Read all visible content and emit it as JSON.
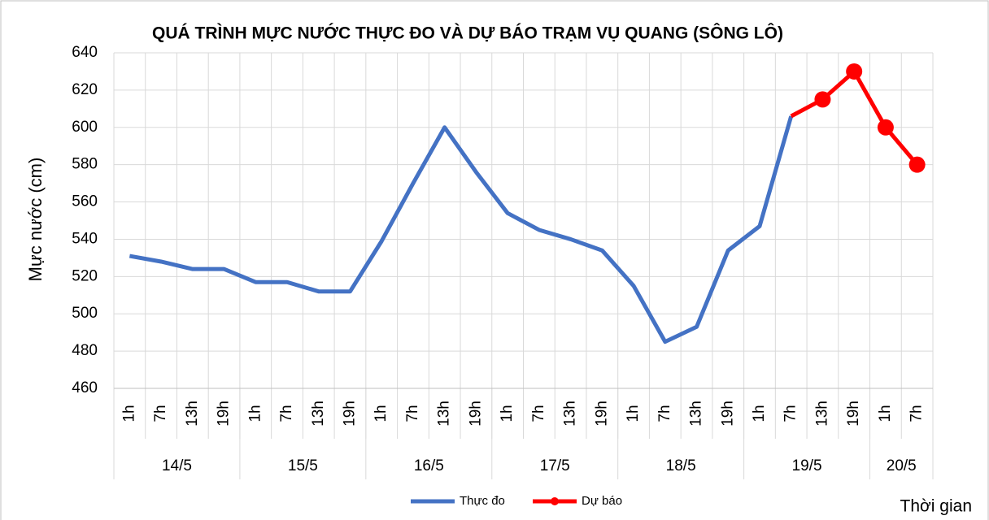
{
  "chart_data": {
    "type": "line",
    "title": "QUÁ TRÌNH MỰC NƯỚC THỰC ĐO VÀ DỰ BÁO TRẠM VỤ QUANG (SÔNG LÔ)",
    "y_label": "Mực nước (cm)",
    "x_label": "Thời gian",
    "categories": [
      "1h",
      "7h",
      "13h",
      "19h",
      "1h",
      "7h",
      "13h",
      "19h",
      "1h",
      "7h",
      "13h",
      "19h",
      "1h",
      "7h",
      "13h",
      "19h",
      "1h",
      "7h",
      "13h",
      "19h",
      "1h",
      "7h",
      "13h",
      "19h",
      "1h",
      "7h"
    ],
    "groups": [
      {
        "label": "14/5",
        "count": 4
      },
      {
        "label": "15/5",
        "count": 4
      },
      {
        "label": "16/5",
        "count": 4
      },
      {
        "label": "17/5",
        "count": 4
      },
      {
        "label": "18/5",
        "count": 4
      },
      {
        "label": "19/5",
        "count": 4
      },
      {
        "label": "20/5",
        "count": 2
      }
    ],
    "series": [
      {
        "name": "Thực đo",
        "color": "#4472c4",
        "marker": false,
        "values": [
          531,
          528,
          524,
          524,
          517,
          517,
          512,
          512,
          539,
          570,
          600,
          576,
          554,
          545,
          540,
          534,
          515,
          485,
          493,
          534,
          547,
          606,
          null,
          null,
          null,
          null
        ]
      },
      {
        "name": "Dự báo",
        "color": "#ff0000",
        "marker": true,
        "values": [
          null,
          null,
          null,
          null,
          null,
          null,
          null,
          null,
          null,
          null,
          null,
          null,
          null,
          null,
          null,
          null,
          null,
          null,
          null,
          null,
          null,
          606,
          615,
          630,
          600,
          580
        ]
      }
    ],
    "ylim": [
      460,
      640
    ],
    "yticks": [
      460,
      480,
      500,
      520,
      540,
      560,
      580,
      600,
      620,
      640
    ],
    "grid": true
  }
}
